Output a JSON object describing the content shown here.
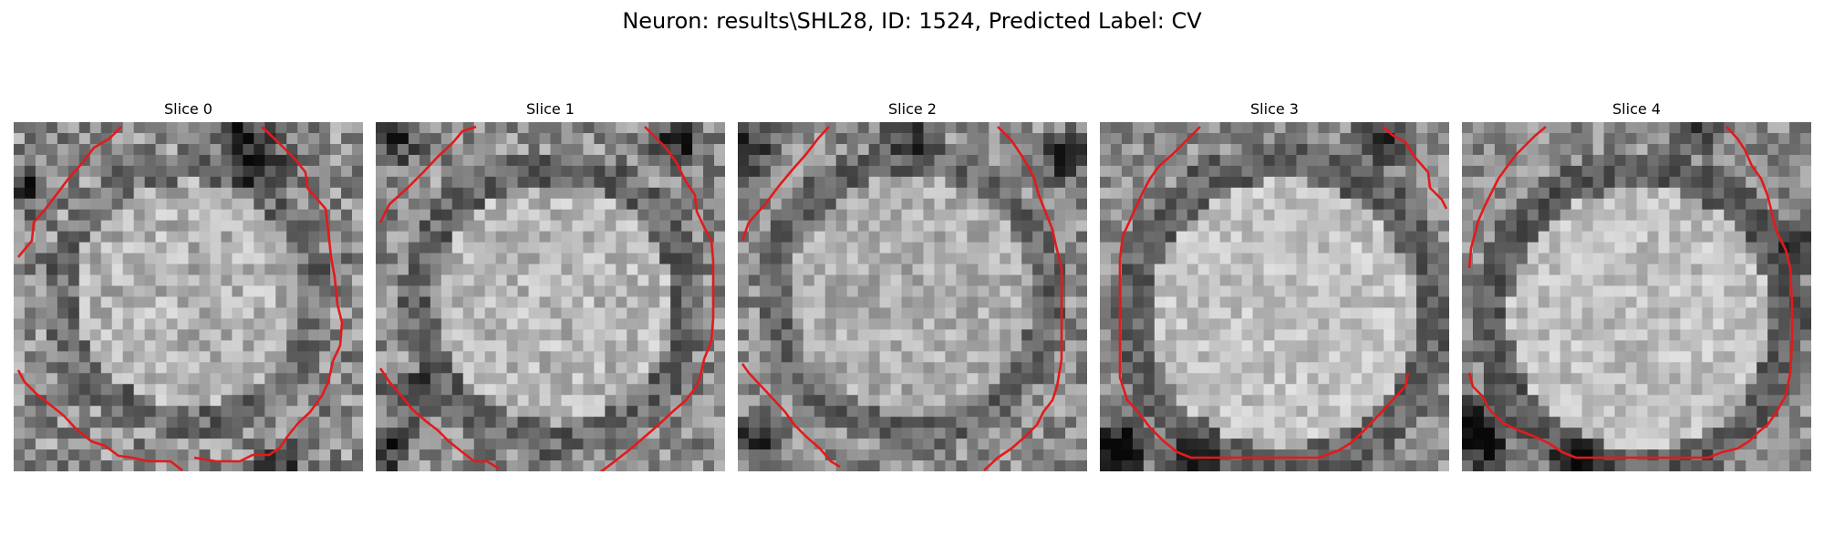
{
  "figure": {
    "title": "Neuron: results\\SHL28, ID: 1524, Predicted Label: CV",
    "contour_color": "#e31a1c",
    "colormap": "gray"
  },
  "panels": [
    {
      "title": "Slice 0"
    },
    {
      "title": "Slice 1"
    },
    {
      "title": "Slice 2"
    },
    {
      "title": "Slice 3"
    },
    {
      "title": "Slice 4"
    }
  ]
}
